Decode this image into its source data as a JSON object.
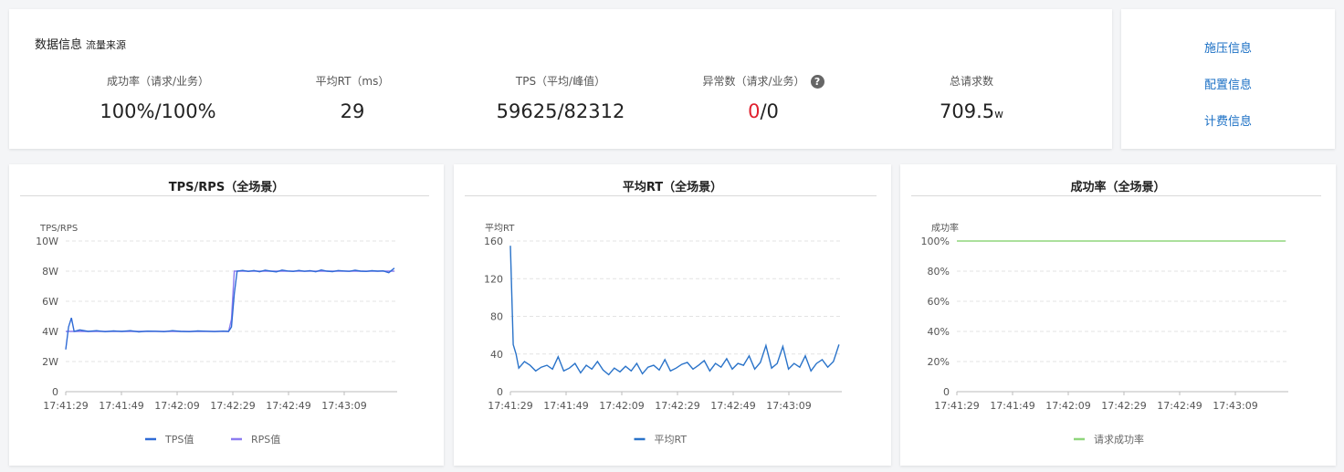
{
  "info": {
    "title": "数据信息",
    "subtitle": "流量来源",
    "metrics": {
      "success_rate": {
        "label": "成功率（请求/业务）",
        "value": "100%/100%"
      },
      "avg_rt": {
        "label": "平均RT（ms）",
        "value": "29"
      },
      "tps": {
        "label": "TPS（平均/峰值）",
        "value": "59625/82312"
      },
      "errors": {
        "label": "异常数（请求/业务）",
        "value_red": "0",
        "value_rest": "/0"
      },
      "total": {
        "label": "总请求数",
        "value": "709.5",
        "unit": "w"
      }
    },
    "help_icon": "?"
  },
  "side_links": [
    "施压信息",
    "配置信息",
    "计费信息"
  ],
  "colors": {
    "tps": "#2f6bd6",
    "rps": "#8c7cf0",
    "rt": "#2a73c9",
    "success": "#8fd67c",
    "link": "#1a6fc4",
    "error": "#e0202e"
  },
  "chart_data": [
    {
      "type": "line",
      "title": "TPS/RPS（全场景）",
      "ylabel": "TPS/RPS",
      "y_ticks": [
        "0",
        "2W",
        "4W",
        "6W",
        "8W",
        "10W"
      ],
      "ylim": [
        0,
        100000
      ],
      "x_ticks": [
        "17:41:29",
        "17:41:49",
        "17:42:09",
        "17:42:29",
        "17:42:49",
        "17:43:09"
      ],
      "x_range_seconds": [
        0,
        118
      ],
      "series": [
        {
          "name": "TPS值",
          "points": [
            [
              0,
              28000
            ],
            [
              1,
              43000
            ],
            [
              2,
              49000
            ],
            [
              3,
              40000
            ],
            [
              5,
              41000
            ],
            [
              8,
              40000
            ],
            [
              11,
              40500
            ],
            [
              14,
              39800
            ],
            [
              17,
              40300
            ],
            [
              20,
              40000
            ],
            [
              23,
              40500
            ],
            [
              26,
              39700
            ],
            [
              29,
              40200
            ],
            [
              32,
              40100
            ],
            [
              35,
              39800
            ],
            [
              38,
              40500
            ],
            [
              41,
              40000
            ],
            [
              44,
              39800
            ],
            [
              47,
              40300
            ],
            [
              50,
              40100
            ],
            [
              53,
              39900
            ],
            [
              56,
              40200
            ],
            [
              58,
              40000
            ],
            [
              59,
              43000
            ],
            [
              60,
              65000
            ],
            [
              61,
              80000
            ],
            [
              63,
              80500
            ],
            [
              65,
              79800
            ],
            [
              67,
              80400
            ],
            [
              69,
              79600
            ],
            [
              71,
              80600
            ],
            [
              73,
              80000
            ],
            [
              75,
              79500
            ],
            [
              77,
              80700
            ],
            [
              79,
              80100
            ],
            [
              81,
              79800
            ],
            [
              83,
              80500
            ],
            [
              85,
              79900
            ],
            [
              87,
              80300
            ],
            [
              89,
              79600
            ],
            [
              91,
              80800
            ],
            [
              93,
              80000
            ],
            [
              95,
              79700
            ],
            [
              97,
              80400
            ],
            [
              99,
              80100
            ],
            [
              101,
              79900
            ],
            [
              103,
              80600
            ],
            [
              105,
              80000
            ],
            [
              107,
              79800
            ],
            [
              109,
              80300
            ],
            [
              111,
              80000
            ],
            [
              113,
              80200
            ],
            [
              115,
              79000
            ],
            [
              117,
              82000
            ]
          ]
        },
        {
          "name": "RPS值",
          "points": [
            [
              0,
              40000
            ],
            [
              58,
              40000
            ],
            [
              59,
              48000
            ],
            [
              60,
              80000
            ],
            [
              117,
              80000
            ]
          ]
        }
      ],
      "legend_position": "bottom"
    },
    {
      "type": "line",
      "title": "平均RT（全场景）",
      "ylabel": "平均RT",
      "y_ticks": [
        "0",
        "40",
        "80",
        "120",
        "160"
      ],
      "ylim": [
        0,
        160
      ],
      "x_ticks": [
        "17:41:29",
        "17:41:49",
        "17:42:09",
        "17:42:29",
        "17:42:49",
        "17:43:09"
      ],
      "x_range_seconds": [
        0,
        118
      ],
      "series": [
        {
          "name": "平均RT",
          "points": [
            [
              0,
              155
            ],
            [
              1,
              50
            ],
            [
              2,
              40
            ],
            [
              3,
              25
            ],
            [
              5,
              32
            ],
            [
              7,
              28
            ],
            [
              9,
              22
            ],
            [
              11,
              26
            ],
            [
              13,
              28
            ],
            [
              15,
              24
            ],
            [
              17,
              37
            ],
            [
              19,
              22
            ],
            [
              21,
              25
            ],
            [
              23,
              30
            ],
            [
              25,
              20
            ],
            [
              27,
              28
            ],
            [
              29,
              24
            ],
            [
              31,
              32
            ],
            [
              33,
              23
            ],
            [
              35,
              18
            ],
            [
              37,
              25
            ],
            [
              39,
              21
            ],
            [
              41,
              27
            ],
            [
              43,
              22
            ],
            [
              45,
              30
            ],
            [
              47,
              19
            ],
            [
              49,
              26
            ],
            [
              51,
              28
            ],
            [
              53,
              23
            ],
            [
              55,
              34
            ],
            [
              57,
              22
            ],
            [
              59,
              25
            ],
            [
              61,
              29
            ],
            [
              63,
              31
            ],
            [
              65,
              24
            ],
            [
              67,
              28
            ],
            [
              69,
              33
            ],
            [
              71,
              22
            ],
            [
              73,
              30
            ],
            [
              75,
              26
            ],
            [
              77,
              35
            ],
            [
              79,
              24
            ],
            [
              81,
              30
            ],
            [
              83,
              28
            ],
            [
              85,
              38
            ],
            [
              87,
              24
            ],
            [
              89,
              31
            ],
            [
              91,
              49
            ],
            [
              93,
              25
            ],
            [
              95,
              30
            ],
            [
              97,
              48
            ],
            [
              99,
              24
            ],
            [
              101,
              30
            ],
            [
              103,
              26
            ],
            [
              105,
              38
            ],
            [
              107,
              22
            ],
            [
              109,
              30
            ],
            [
              111,
              34
            ],
            [
              113,
              26
            ],
            [
              115,
              32
            ],
            [
              117,
              50
            ]
          ]
        }
      ],
      "legend_position": "bottom"
    },
    {
      "type": "line",
      "title": "成功率（全场景）",
      "ylabel": "成功率",
      "y_ticks": [
        "0",
        "20%",
        "40%",
        "60%",
        "80%",
        "100%"
      ],
      "ylim": [
        0,
        100
      ],
      "x_ticks": [
        "17:41:29",
        "17:41:49",
        "17:42:09",
        "17:42:29",
        "17:42:49",
        "17:43:09"
      ],
      "x_range_seconds": [
        0,
        118
      ],
      "series": [
        {
          "name": "请求成功率",
          "points": [
            [
              0,
              100
            ],
            [
              117,
              100
            ]
          ]
        }
      ],
      "legend_position": "bottom"
    }
  ]
}
